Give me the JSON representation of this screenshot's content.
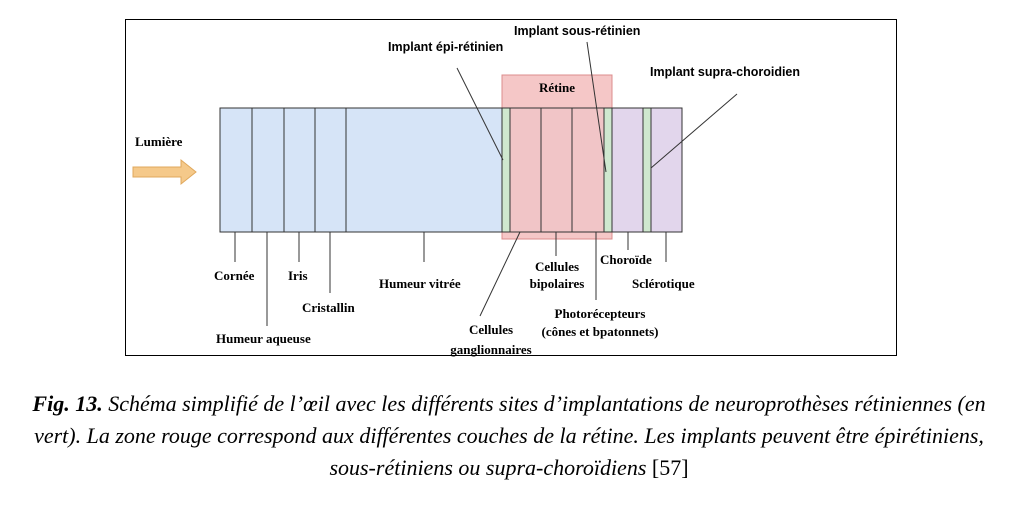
{
  "colors": {
    "eye": "#d6e4f7",
    "retina_zone": "#f4c2c2",
    "implant": "#cfe8cf",
    "choroid": "#e2d6ec",
    "arrow": "#f5c98a"
  },
  "labels": {
    "light": "Lumière",
    "retina": "Rétine",
    "cornea": "Cornée",
    "iris": "Iris",
    "aqueous": "Humeur aqueuse",
    "lens": "Cristallin",
    "vitreous": "Humeur vitrée",
    "ganglion_1": "Cellules",
    "ganglion_2": "ganglionnaires",
    "bipolar_1": "Cellules",
    "bipolar_2": "bipolaires",
    "photo_1": "Photorécepteurs",
    "photo_2": "(cônes et bpatonnets)",
    "choroid": "Choroïde",
    "sclera": "Sclérotique"
  },
  "implants": {
    "epi": "Implant épi-rétinien",
    "sub": "Implant sous-rétinien",
    "supra": "Implant supra-choroidien"
  },
  "caption": {
    "fig": "Fig. 13.",
    "text": " Schéma simplifié de l’œil avec les différents sites d’implantations de neuroprothèses rétiniennes (en vert). La zone rouge correspond aux différentes couches de la rétine. Les implants peuvent être épirétiniens, sous-rétiniens ou supra-choroïdiens ",
    "ref": "[57]"
  }
}
